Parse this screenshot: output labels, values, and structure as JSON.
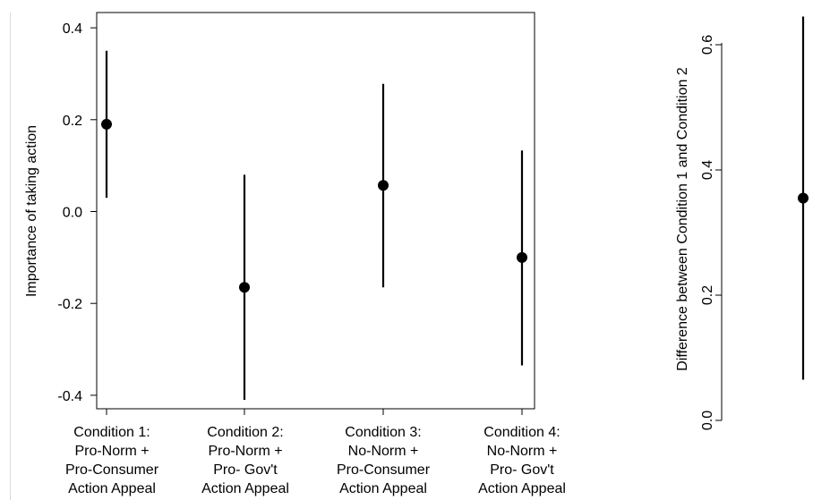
{
  "chart_data": [
    {
      "type": "scatter",
      "ylabel": "Importance of taking action",
      "ylim": [
        -0.42,
        0.42
      ],
      "yticks": [
        "0.4",
        "0.2",
        "0.0",
        "-0.2",
        "-0.4"
      ],
      "ytick_values": [
        0.4,
        0.2,
        0.0,
        -0.2,
        -0.4
      ],
      "categories": [
        [
          "Condition 1:",
          "Pro-Norm +",
          "Pro-Consumer",
          "Action Appeal"
        ],
        [
          "Condition 2:",
          "Pro-Norm +",
          "Pro- Gov't",
          "Action Appeal"
        ],
        [
          "Condition 3:",
          "No-Norm +",
          "Pro-Consumer",
          "Action Appeal"
        ],
        [
          "Condition 4:",
          "No-Norm +",
          "Pro- Gov't",
          "Action Appeal"
        ]
      ],
      "points": [
        {
          "estimate": 0.19,
          "lower": 0.03,
          "upper": 0.35
        },
        {
          "estimate": -0.165,
          "lower": -0.41,
          "upper": 0.08
        },
        {
          "estimate": 0.057,
          "lower": -0.165,
          "upper": 0.278
        },
        {
          "estimate": -0.1,
          "lower": -0.335,
          "upper": 0.133
        }
      ],
      "grid": false,
      "legend": "none"
    },
    {
      "type": "scatter",
      "ylabel": "Difference between Condition 1 and Condition 2",
      "ylim": [
        0.0,
        0.65
      ],
      "yticks": [
        "0.0",
        "0.2",
        "0.4",
        "0.6"
      ],
      "ytick_values": [
        0.0,
        0.2,
        0.4,
        0.6
      ],
      "points": [
        {
          "estimate": 0.355,
          "lower": 0.065,
          "upper": 0.645
        }
      ],
      "grid": false,
      "legend": "none"
    }
  ]
}
